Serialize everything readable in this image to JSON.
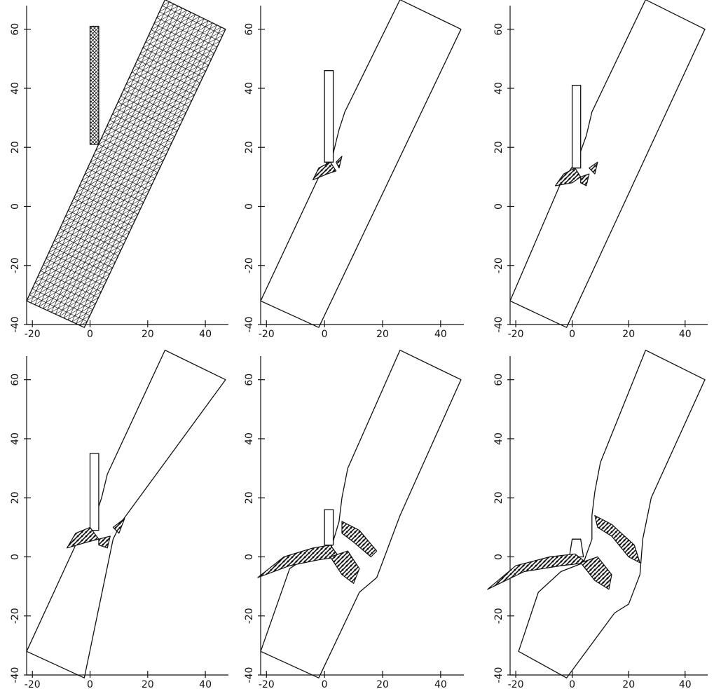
{
  "chart_data": [
    {
      "type": "line",
      "stage": "initial-mesh",
      "xlim": [
        -22,
        48
      ],
      "ylim": [
        -40,
        68
      ],
      "xticks": [
        -20,
        0,
        20,
        40
      ],
      "yticks": [
        -40,
        -20,
        0,
        20,
        40,
        60
      ],
      "xtick_labels": [
        "-20",
        "0",
        "20",
        "40"
      ],
      "ytick_labels": [
        "-40",
        "-20",
        "0",
        "20",
        "40",
        "60"
      ],
      "grid": false,
      "target_outline": [
        [
          -22,
          -32
        ],
        [
          26,
          70
        ],
        [
          47,
          60
        ],
        [
          -2,
          -41
        ]
      ],
      "projectile_outline": [
        [
          0,
          21
        ],
        [
          0,
          61
        ],
        [
          3,
          61
        ],
        [
          3,
          21
        ]
      ],
      "mesh": true,
      "debris": []
    },
    {
      "type": "line",
      "stage": "penetration-1",
      "xlim": [
        -22,
        48
      ],
      "ylim": [
        -40,
        68
      ],
      "xticks": [
        -20,
        0,
        20,
        40
      ],
      "yticks": [
        -40,
        -20,
        0,
        20,
        40,
        60
      ],
      "xtick_labels": [
        "-20",
        "0",
        "20",
        "40"
      ],
      "ytick_labels": [
        "-40",
        "-20",
        "0",
        "20",
        "40",
        "60"
      ],
      "grid": false,
      "target_outline": [
        [
          -22,
          -32
        ],
        [
          -1,
          12
        ],
        [
          3,
          18
        ],
        [
          5,
          26
        ],
        [
          7,
          32
        ],
        [
          26,
          70
        ],
        [
          47,
          60
        ],
        [
          -2,
          -41
        ]
      ],
      "projectile_outline": [
        [
          0,
          15
        ],
        [
          0,
          46
        ],
        [
          3,
          46
        ],
        [
          3,
          15
        ]
      ],
      "mesh": false,
      "debris": [
        {
          "points": [
            [
              -4,
              9
            ],
            [
              -2,
              13
            ],
            [
              2,
              15
            ],
            [
              4,
              12
            ],
            [
              1,
              11
            ]
          ]
        },
        {
          "points": [
            [
              4,
              15
            ],
            [
              6,
              17
            ],
            [
              5,
              13
            ]
          ]
        }
      ]
    },
    {
      "type": "line",
      "stage": "penetration-2",
      "xlim": [
        -22,
        48
      ],
      "ylim": [
        -40,
        68
      ],
      "xticks": [
        -20,
        0,
        20,
        40
      ],
      "yticks": [
        -40,
        -20,
        0,
        20,
        40,
        60
      ],
      "xtick_labels": [
        "-20",
        "0",
        "20",
        "40"
      ],
      "ytick_labels": [
        "-40",
        "-20",
        "0",
        "20",
        "40",
        "60"
      ],
      "grid": false,
      "target_outline": [
        [
          -22,
          -32
        ],
        [
          -4,
          8
        ],
        [
          2,
          16
        ],
        [
          5,
          24
        ],
        [
          7,
          32
        ],
        [
          26,
          70
        ],
        [
          47,
          60
        ],
        [
          -2,
          -41
        ]
      ],
      "projectile_outline": [
        [
          0,
          13
        ],
        [
          0,
          41
        ],
        [
          3,
          41
        ],
        [
          3,
          13
        ]
      ],
      "mesh": false,
      "debris": [
        {
          "points": [
            [
              -6,
              7
            ],
            [
              -3,
              11
            ],
            [
              1,
              13
            ],
            [
              3,
              10
            ],
            [
              0,
              8
            ]
          ]
        },
        {
          "points": [
            [
              3,
              10
            ],
            [
              6,
              11
            ],
            [
              5,
              7
            ],
            [
              3,
              8
            ]
          ]
        },
        {
          "points": [
            [
              6,
              13
            ],
            [
              9,
              15
            ],
            [
              8,
              11
            ]
          ]
        }
      ]
    },
    {
      "type": "line",
      "stage": "penetration-3",
      "xlim": [
        -22,
        48
      ],
      "ylim": [
        -40,
        68
      ],
      "xticks": [
        -20,
        0,
        20,
        40
      ],
      "yticks": [
        -40,
        -20,
        0,
        20,
        40,
        60
      ],
      "xtick_labels": [
        "-20",
        "0",
        "20",
        "40"
      ],
      "ytick_labels": [
        "-40",
        "-20",
        "0",
        "20",
        "40",
        "60"
      ],
      "grid": false,
      "target_outline": [
        [
          -22,
          -32
        ],
        [
          -5,
          4
        ],
        [
          1,
          11
        ],
        [
          4,
          20
        ],
        [
          6,
          28
        ],
        [
          26,
          70
        ],
        [
          47,
          60
        ],
        [
          11,
          12
        ],
        [
          8,
          6
        ],
        [
          -2,
          -41
        ]
      ],
      "projectile_outline": [
        [
          0,
          9
        ],
        [
          0,
          35
        ],
        [
          3,
          35
        ],
        [
          3,
          9
        ]
      ],
      "mesh": false,
      "debris": [
        {
          "points": [
            [
              -8,
              3
            ],
            [
              -5,
              8
            ],
            [
              0,
              10
            ],
            [
              3,
              6
            ],
            [
              -1,
              5
            ]
          ]
        },
        {
          "points": [
            [
              3,
              6
            ],
            [
              7,
              7
            ],
            [
              6,
              3
            ],
            [
              3,
              4
            ]
          ]
        },
        {
          "points": [
            [
              8,
              10
            ],
            [
              12,
              13
            ],
            [
              10,
              8
            ]
          ]
        }
      ]
    },
    {
      "type": "line",
      "stage": "penetration-4",
      "xlim": [
        -22,
        48
      ],
      "ylim": [
        -40,
        68
      ],
      "xticks": [
        -20,
        0,
        20,
        40
      ],
      "yticks": [
        -40,
        -20,
        0,
        20,
        40,
        60
      ],
      "xtick_labels": [
        "-20",
        "0",
        "20",
        "40"
      ],
      "ytick_labels": [
        "-40",
        "-20",
        "0",
        "20",
        "40",
        "60"
      ],
      "grid": false,
      "target_outline": [
        [
          -22,
          -32
        ],
        [
          -12,
          -4
        ],
        [
          -6,
          0
        ],
        [
          2,
          2
        ],
        [
          5,
          12
        ],
        [
          6,
          20
        ],
        [
          8,
          30
        ],
        [
          26,
          70
        ],
        [
          47,
          60
        ],
        [
          26,
          14
        ],
        [
          18,
          -7
        ],
        [
          12,
          -12
        ],
        [
          -2,
          -41
        ]
      ],
      "projectile_outline": [
        [
          0,
          4
        ],
        [
          0,
          16
        ],
        [
          3,
          16
        ],
        [
          3,
          4
        ]
      ],
      "mesh": false,
      "debris": [
        {
          "points": [
            [
              -23,
              -7
            ],
            [
              -14,
              0
            ],
            [
              -4,
              3
            ],
            [
              2,
              4
            ],
            [
              5,
              0
            ],
            [
              -2,
              -1
            ],
            [
              -12,
              -3
            ]
          ]
        },
        {
          "points": [
            [
              2,
              0
            ],
            [
              8,
              2
            ],
            [
              12,
              -4
            ],
            [
              10,
              -9
            ],
            [
              6,
              -6
            ]
          ]
        },
        {
          "points": [
            [
              6,
              12
            ],
            [
              12,
              9
            ],
            [
              18,
              2
            ],
            [
              16,
              0
            ],
            [
              10,
              5
            ],
            [
              6,
              8
            ]
          ]
        }
      ]
    },
    {
      "type": "line",
      "stage": "penetration-5",
      "xlim": [
        -22,
        48
      ],
      "ylim": [
        -40,
        68
      ],
      "xticks": [
        -20,
        0,
        20,
        40
      ],
      "yticks": [
        -40,
        -20,
        0,
        20,
        40,
        60
      ],
      "xtick_labels": [
        "-20",
        "0",
        "20",
        "40"
      ],
      "ytick_labels": [
        "-40",
        "-20",
        "0",
        "20",
        "40",
        "60"
      ],
      "grid": false,
      "target_outline": [
        [
          -19,
          -32
        ],
        [
          -12,
          -12
        ],
        [
          -4,
          -5
        ],
        [
          4,
          -2
        ],
        [
          7,
          6
        ],
        [
          7,
          14
        ],
        [
          8,
          22
        ],
        [
          10,
          32
        ],
        [
          26,
          70
        ],
        [
          47,
          60
        ],
        [
          28,
          20
        ],
        [
          25,
          6
        ],
        [
          24,
          -6
        ],
        [
          20,
          -16
        ],
        [
          15,
          -19
        ],
        [
          -2,
          -41
        ]
      ],
      "projectile_outline": [
        [
          -1,
          0
        ],
        [
          0,
          6
        ],
        [
          3,
          6
        ],
        [
          4,
          0
        ]
      ],
      "mesh": false,
      "debris": [
        {
          "points": [
            [
              -30,
              -11
            ],
            [
              -20,
              -3
            ],
            [
              -8,
              0
            ],
            [
              1,
              1
            ],
            [
              5,
              -2
            ],
            [
              -4,
              -3
            ],
            [
              -17,
              -5
            ]
          ]
        },
        {
          "points": [
            [
              3,
              -2
            ],
            [
              9,
              0
            ],
            [
              14,
              -6
            ],
            [
              13,
              -11
            ],
            [
              8,
              -8
            ]
          ]
        },
        {
          "points": [
            [
              8,
              14
            ],
            [
              14,
              11
            ],
            [
              22,
              4
            ],
            [
              24,
              -2
            ],
            [
              20,
              0
            ],
            [
              14,
              7
            ],
            [
              9,
              10
            ]
          ]
        }
      ]
    }
  ]
}
